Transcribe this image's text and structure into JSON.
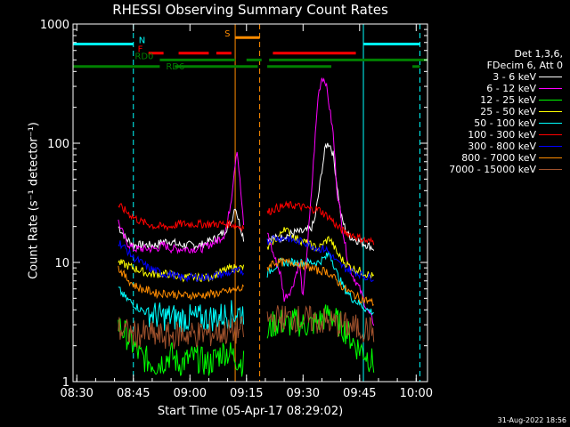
{
  "title": "RHESSI Observing Summary Count Rates",
  "xlabel": "Start Time (05-Apr-17 08:29:02)",
  "ylabel": "Count Rate (s⁻¹ detector⁻¹)",
  "footer": "31-Aug-2022 18:56",
  "legend": {
    "header": [
      "Det 1,3,6,",
      "FDecim 6, Att 0"
    ],
    "entries": [
      {
        "label": "3 - 6 keV",
        "color": "#ffffff"
      },
      {
        "label": "6 - 12 keV",
        "color": "#ff00ff"
      },
      {
        "label": "12 - 25 keV",
        "color": "#00ff00"
      },
      {
        "label": "25 - 50 keV",
        "color": "#ffff00"
      },
      {
        "label": "50 - 100 keV",
        "color": "#00ffff"
      },
      {
        "label": "100 - 300 keV",
        "color": "#ff0000"
      },
      {
        "label": "300 - 800 keV",
        "color": "#0000ff"
      },
      {
        "label": "800 - 7000 keV",
        "color": "#ff8c00"
      },
      {
        "label": "7000 - 15000 keV",
        "color": "#a0522d"
      }
    ]
  },
  "chart_data": {
    "type": "line",
    "title": "RHESSI Observing Summary Count Rates",
    "xlabel": "Start Time (05-Apr-17 08:29:02)",
    "ylabel": "Count Rate (s^-1 detector^-1)",
    "x_unit": "minutes after 08:29:02",
    "xlim": [
      0,
      94
    ],
    "ylim": [
      1,
      1000
    ],
    "yscale": "log",
    "x_ticks": [
      {
        "x": 1,
        "label": "08:30"
      },
      {
        "x": 16,
        "label": "08:45"
      },
      {
        "x": 31,
        "label": "09:00"
      },
      {
        "x": 46,
        "label": "09:15"
      },
      {
        "x": 61,
        "label": "09:30"
      },
      {
        "x": 76,
        "label": "09:45"
      },
      {
        "x": 91,
        "label": "10:00"
      }
    ],
    "y_ticks": [
      {
        "y": 1,
        "label": "1"
      },
      {
        "y": 10,
        "label": "10"
      },
      {
        "y": 100,
        "label": "100"
      },
      {
        "y": 1000,
        "label": "1000"
      }
    ],
    "data_gaps": [
      [
        45.5,
        51.5
      ],
      [
        80.5,
        94
      ]
    ],
    "vertical_lines": [
      {
        "x": 0,
        "style": "solid",
        "color": "#00ffff"
      },
      {
        "x": 16,
        "style": "dashed",
        "color": "#00ffff"
      },
      {
        "x": 43,
        "style": "solid",
        "color": "#ff8c00"
      },
      {
        "x": 49.5,
        "style": "dashed",
        "color": "#ff8c00"
      },
      {
        "x": 77,
        "style": "solid",
        "color": "#00ffff"
      },
      {
        "x": 92,
        "style": "dashed",
        "color": "#00ffff"
      }
    ],
    "flag_bars": [
      {
        "label": "N",
        "color": "#00ffff",
        "y": 680,
        "segments": [
          [
            0,
            16
          ],
          [
            77,
            92
          ]
        ]
      },
      {
        "label": "S",
        "color": "#ff8c00",
        "y": 770,
        "segments": [
          [
            43,
            49.5
          ]
        ]
      },
      {
        "label": "F",
        "color": "#ff0000",
        "y": 570,
        "segments": [
          [
            20,
            24
          ],
          [
            28,
            36
          ],
          [
            38,
            42
          ],
          [
            53,
            75
          ]
        ]
      },
      {
        "label": "RD0",
        "color": "#008000",
        "y": 500,
        "segments": [
          [
            23,
            43
          ],
          [
            46,
            50
          ],
          [
            52,
            94
          ]
        ]
      },
      {
        "label": "RD6",
        "color": "#008000",
        "y": 440,
        "segments": [
          [
            0,
            23
          ],
          [
            27,
            49
          ],
          [
            51.5,
            68.5
          ],
          [
            90,
            92
          ]
        ]
      }
    ],
    "series": [
      {
        "name": "3 - 6 keV",
        "color": "#ffffff",
        "x": [
          12,
          14,
          16,
          18,
          20,
          22,
          24,
          26,
          28,
          30,
          32,
          34,
          36,
          38,
          40,
          42,
          43,
          44,
          45.5,
          51.5,
          53,
          55,
          57,
          59,
          61,
          63,
          64,
          65,
          66,
          67,
          68,
          69,
          70,
          71,
          72,
          73,
          74,
          76,
          78,
          80
        ],
        "y": [
          20,
          16,
          14,
          14,
          14,
          14,
          15,
          15,
          14,
          14,
          14,
          14,
          15,
          16,
          18,
          22,
          30,
          22,
          15,
          16,
          16,
          16,
          17,
          18,
          18,
          19,
          22,
          35,
          60,
          95,
          100,
          80,
          45,
          25,
          20,
          17,
          16,
          15,
          14,
          13
        ]
      },
      {
        "name": "6 - 12 keV",
        "color": "#ff00ff",
        "x": [
          12,
          14,
          16,
          18,
          20,
          22,
          24,
          26,
          28,
          30,
          32,
          34,
          36,
          38,
          40,
          41,
          42,
          43,
          43.5,
          44,
          45,
          45.5,
          51.5,
          53,
          55,
          56,
          58,
          60,
          61,
          62,
          63,
          64,
          65,
          66,
          67,
          68,
          69,
          70,
          71,
          72,
          73,
          74,
          76,
          78,
          80
        ],
        "y": [
          22,
          15,
          13,
          13,
          13,
          13,
          14,
          13,
          13,
          13,
          13,
          13,
          14,
          15,
          17,
          22,
          35,
          70,
          90,
          60,
          25,
          16,
          18,
          12,
          8,
          5,
          6,
          10,
          5,
          12,
          30,
          90,
          250,
          360,
          330,
          200,
          120,
          40,
          25,
          15,
          10,
          8,
          6,
          4,
          3
        ]
      },
      {
        "name": "12 - 25 keV",
        "color": "#00ff00",
        "x": [
          12,
          14,
          16,
          18,
          20,
          22,
          24,
          26,
          28,
          30,
          32,
          34,
          36,
          38,
          40,
          42,
          44,
          45.5,
          51.5,
          53,
          55,
          57,
          59,
          61,
          63,
          65,
          67,
          68,
          69,
          71,
          73,
          75,
          77,
          79,
          80
        ],
        "y": [
          3,
          2.5,
          2,
          1.6,
          1.5,
          1.4,
          1.5,
          1.7,
          1.4,
          1.5,
          1.6,
          1.5,
          1.4,
          1.6,
          1.8,
          1.7,
          1.5,
          1.4,
          2.5,
          3,
          3.2,
          3,
          3.2,
          3,
          3,
          3.2,
          3.5,
          3.8,
          3.4,
          3,
          2.5,
          2,
          1.8,
          1.5,
          1.4
        ]
      },
      {
        "name": "25 - 50 keV",
        "color": "#ffff00",
        "x": [
          12,
          14,
          16,
          18,
          20,
          22,
          24,
          26,
          28,
          30,
          32,
          34,
          36,
          38,
          40,
          42,
          44,
          45.5,
          51.5,
          53,
          55,
          56,
          57,
          59,
          61,
          63,
          65,
          67,
          68,
          69,
          70,
          72,
          74,
          76,
          78,
          80
        ],
        "y": [
          10,
          9.5,
          9,
          8.5,
          8,
          8,
          8,
          8,
          7.5,
          7.5,
          7.5,
          7.5,
          7.5,
          8,
          8.5,
          9,
          9,
          9,
          13,
          15,
          17,
          20,
          18,
          16,
          15,
          14,
          13,
          15,
          16,
          14,
          12,
          10,
          9,
          8.5,
          8,
          7.5
        ]
      },
      {
        "name": "50 - 100 keV",
        "color": "#00ffff",
        "x": [
          12,
          14,
          16,
          18,
          20,
          22,
          24,
          26,
          28,
          30,
          32,
          34,
          36,
          38,
          40,
          42,
          44,
          45.5,
          51.5,
          53,
          55,
          57,
          59,
          61,
          63,
          65,
          67,
          68,
          69,
          70,
          72,
          74,
          76,
          78,
          80
        ],
        "y": [
          6,
          5,
          4.5,
          4,
          3.8,
          3.6,
          3.5,
          3.5,
          3.4,
          3.4,
          3.4,
          3.4,
          3.4,
          3.5,
          3.6,
          3.7,
          3.8,
          3.8,
          8,
          9,
          10,
          10,
          10,
          10,
          10,
          10,
          11,
          12,
          10,
          8,
          6,
          5,
          4.5,
          4,
          3.8
        ]
      },
      {
        "name": "100 - 300 keV",
        "color": "#ff0000",
        "x": [
          12,
          14,
          16,
          18,
          20,
          22,
          24,
          26,
          28,
          30,
          32,
          34,
          36,
          38,
          40,
          42,
          44,
          45.5,
          51.5,
          53,
          55,
          57,
          59,
          61,
          63,
          65,
          67,
          68,
          69,
          70,
          72,
          74,
          76,
          78,
          80
        ],
        "y": [
          30,
          27,
          24,
          22,
          21,
          20,
          20,
          20,
          21,
          21,
          21,
          21,
          21,
          21,
          21,
          21,
          20,
          20,
          26,
          28,
          29,
          30,
          30,
          29,
          28,
          28,
          25,
          24,
          22,
          20,
          18,
          17,
          16,
          15,
          15
        ]
      },
      {
        "name": "300 - 800 keV",
        "color": "#0000ff",
        "x": [
          12,
          14,
          16,
          18,
          20,
          22,
          24,
          26,
          28,
          30,
          32,
          34,
          36,
          38,
          40,
          42,
          44,
          45.5,
          51.5,
          53,
          55,
          57,
          59,
          61,
          63,
          65,
          67,
          68,
          69,
          70,
          72,
          74,
          76,
          78,
          80
        ],
        "y": [
          15,
          13,
          11,
          10,
          9,
          8.5,
          8,
          8,
          7.5,
          7.5,
          7.5,
          7.5,
          7.5,
          7.8,
          8,
          8.2,
          8.5,
          8.5,
          15,
          16,
          16,
          16,
          15,
          15,
          14,
          13,
          13,
          12,
          11,
          10,
          9,
          8.5,
          8,
          7.5,
          7.5
        ]
      },
      {
        "name": "800 - 7000 keV",
        "color": "#ff8c00",
        "x": [
          12,
          14,
          16,
          18,
          20,
          22,
          24,
          26,
          28,
          30,
          32,
          34,
          36,
          38,
          40,
          42,
          44,
          45.5,
          51.5,
          53,
          55,
          57,
          59,
          61,
          63,
          65,
          67,
          68,
          69,
          70,
          72,
          74,
          76,
          78,
          80
        ],
        "y": [
          9,
          7.5,
          6.5,
          6,
          5.8,
          5.5,
          5.5,
          5.5,
          5.3,
          5.3,
          5.3,
          5.3,
          5.4,
          5.5,
          5.6,
          5.8,
          6,
          6,
          9,
          10,
          10,
          10,
          10,
          9.5,
          9,
          8.5,
          8.5,
          8,
          7.5,
          7,
          6,
          5.5,
          5,
          4.8,
          4.5
        ]
      },
      {
        "name": "7000 - 15000 keV",
        "color": "#a0522d",
        "x": [
          12,
          14,
          16,
          18,
          20,
          22,
          24,
          26,
          28,
          30,
          32,
          34,
          36,
          38,
          40,
          42,
          44,
          45.5,
          51.5,
          53,
          55,
          57,
          59,
          61,
          63,
          65,
          67,
          69,
          71,
          73,
          75,
          77,
          79,
          80
        ],
        "y": [
          2.8,
          2.6,
          2.5,
          2.5,
          2.5,
          2.4,
          2.4,
          2.4,
          2.5,
          2.5,
          2.5,
          2.5,
          2.5,
          2.6,
          2.6,
          2.6,
          2.7,
          2.7,
          3.2,
          3.4,
          3.4,
          3.4,
          3.4,
          3.3,
          3.3,
          3.2,
          3.2,
          3.1,
          3,
          2.9,
          2.8,
          2.8,
          2.7,
          2.7
        ]
      }
    ]
  }
}
